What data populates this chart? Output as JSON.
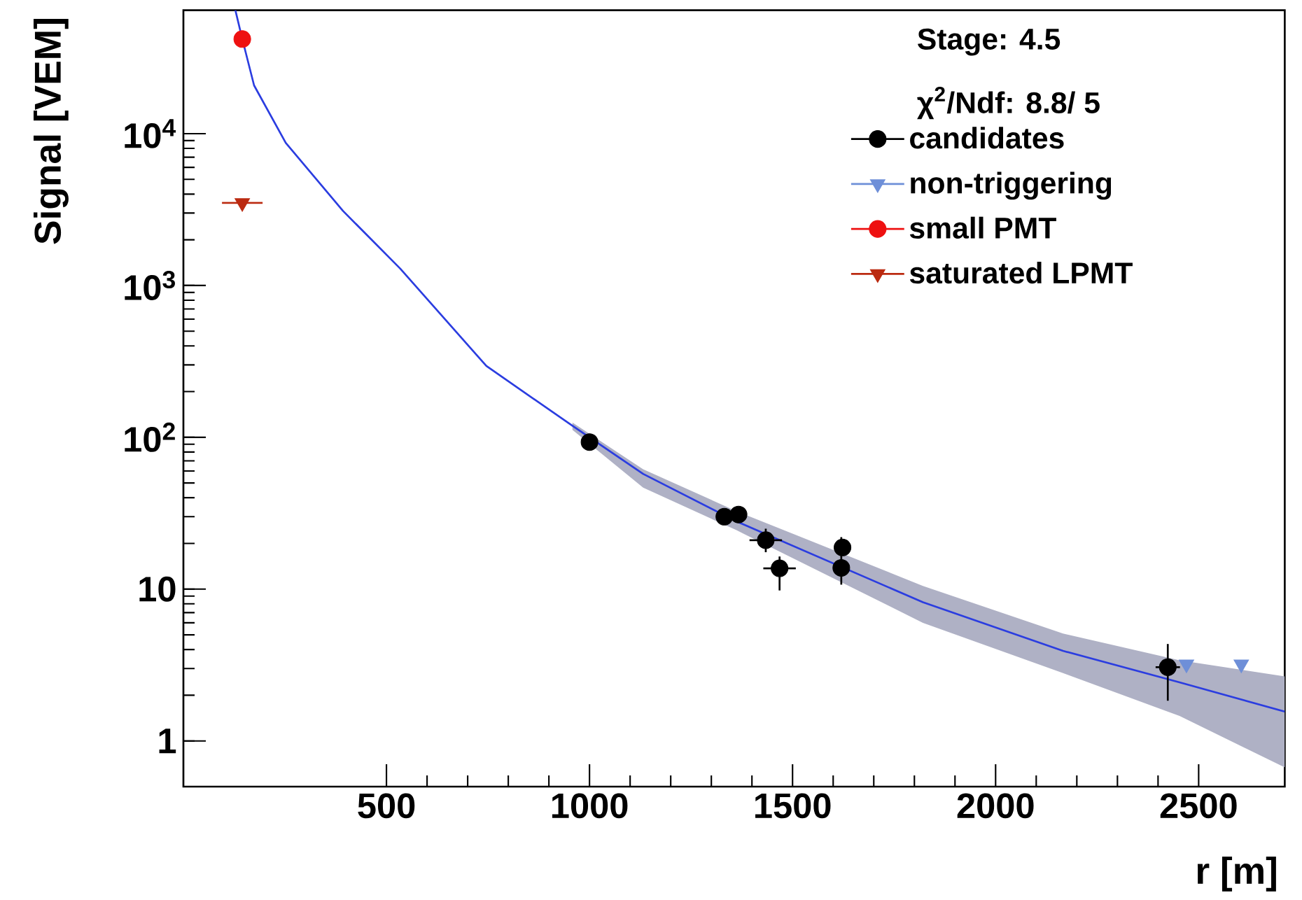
{
  "chart_data": {
    "type": "scatter",
    "xlabel": "r [m]",
    "ylabel": "Signal [VEM]",
    "xlim": [
      0,
      2712
    ],
    "xticks": [
      500,
      1000,
      1500,
      2000,
      2500
    ],
    "ylim": [
      0.5,
      65000
    ],
    "yticks": [
      1,
      10,
      {
        "value": 100,
        "label": "10$^{2}$"
      },
      {
        "value": 1000,
        "label": "10$^{3}$"
      },
      {
        "value": 10000,
        "label": "10$^{4}$"
      }
    ],
    "log": "y",
    "grid": false,
    "legend": "top right",
    "annotations": [
      "Stage: 4.5",
      "χ$^{2}$/Ndf: 8.8/ 5"
    ],
    "series": [
      {
        "type": "line",
        "color": "#2b3de0",
        "x": [
          128,
          145,
          174,
          252,
          393,
          534,
          746,
          958,
          1132,
          1361,
          1821,
          2166,
          2453,
          2712
        ],
        "values": [
          65000,
          42000,
          20800,
          8700,
          3100,
          1290,
          295,
          119,
          57.4,
          28,
          8.2,
          3.92,
          2.43,
          1.56
        ],
        "lower": [
          null,
          null,
          null,
          null,
          null,
          null,
          null,
          112,
          46.6,
          24.5,
          6.0,
          2.8,
          1.46,
          0.67
        ],
        "upper": [
          null,
          null,
          null,
          null,
          null,
          null,
          null,
          125,
          61.6,
          32.7,
          10.5,
          5.1,
          3.4,
          2.66
        ]
      },
      {
        "name": "candidates",
        "color": "#000000",
        "marker": "circle",
        "x": [
          1000,
          1332,
          1367,
          1434,
          1468,
          1620,
          1623,
          2424
        ],
        "values": [
          93,
          30,
          31,
          21,
          13.7,
          13.8,
          18.8,
          3.06
        ],
        "xerrors": [
          null,
          null,
          null,
          40,
          40,
          null,
          null,
          30
        ],
        "errors": [
          null,
          null,
          null,
          [
            17.5,
            25
          ],
          [
            9.8,
            16.4
          ],
          [
            10.7,
            22
          ],
          null,
          [
            1.84,
            4.35
          ]
        ]
      },
      {
        "name": "non-triggering",
        "color": "#6e8fd8",
        "marker": "triangle",
        "x": [
          2470,
          2605
        ],
        "values": [
          3.2,
          3.2
        ]
      },
      {
        "name": "small PMT",
        "color": "#ee1111",
        "marker": "circle",
        "x": [
          145
        ],
        "values": [
          42000
        ]
      },
      {
        "name": "saturated LPMT",
        "color": "#bb2a10",
        "marker": "triangle",
        "x": [
          145
        ],
        "values": [
          3500
        ],
        "xerrors": [
          50
        ]
      }
    ]
  }
}
